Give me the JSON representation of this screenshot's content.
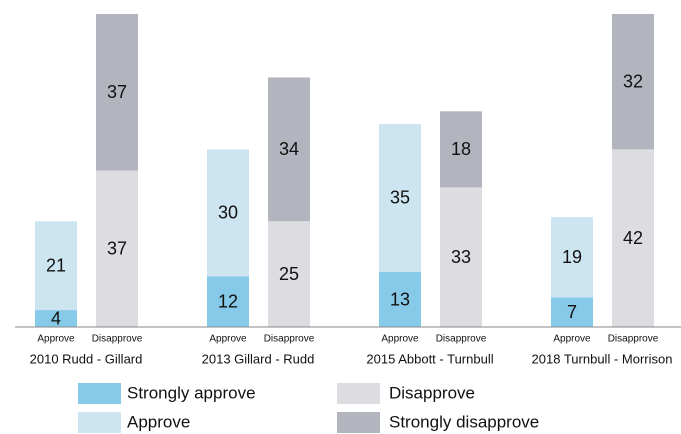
{
  "chart_data": {
    "type": "grouped-stacked-bar",
    "groups": [
      "2010 Rudd - Gillard",
      "2013 Gillard - Rudd",
      "2015 Abbott - Turnbull",
      "2018 Turnbull - Morrison"
    ],
    "bars": [
      "Approve",
      "Disapprove"
    ],
    "series": [
      {
        "name": "Strongly approve",
        "color": "#86c9e8",
        "stack": 0,
        "values": [
          4,
          12,
          13,
          7
        ]
      },
      {
        "name": "Approve",
        "color": "#cde5f1",
        "stack": 0,
        "values": [
          21,
          30,
          35,
          19
        ]
      },
      {
        "name": "Disapprove",
        "color": "#dcdce1",
        "stack": 1,
        "values": [
          37,
          25,
          33,
          42
        ]
      },
      {
        "name": "Strongly disapprove",
        "color": "#b2b5bd",
        "stack": 1,
        "values": [
          37,
          34,
          18,
          32
        ]
      }
    ],
    "ylim": [
      0,
      74
    ]
  }
}
